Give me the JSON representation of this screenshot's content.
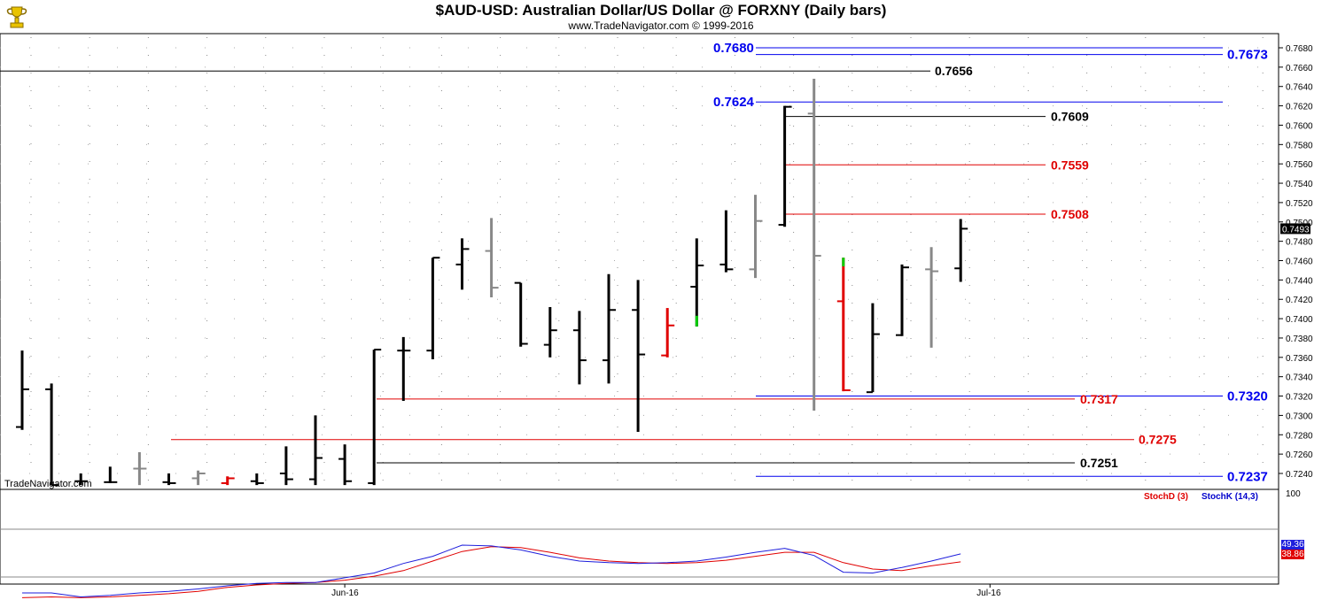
{
  "header": {
    "title": "$AUD-USD:  Australian Dollar/US Dollar @ FORXNY  (Daily bars)",
    "subtitle": "www.TradeNavigator.com © 1999-2016",
    "watermark": "TradeNavigator.com",
    "logo_icon": "trophy-logo-icon"
  },
  "chart_data": {
    "type": "ohlc",
    "ylim": [
      0.723,
      0.769
    ],
    "yticks": [
      "0.7240",
      "0.7260",
      "0.7280",
      "0.7300",
      "0.7320",
      "0.7340",
      "0.7360",
      "0.7380",
      "0.7400",
      "0.7420",
      "0.7440",
      "0.7460",
      "0.7480",
      "0.7500",
      "0.7520",
      "0.7540",
      "0.7560",
      "0.7580",
      "0.7600",
      "0.7620",
      "0.7640",
      "0.7660",
      "0.7680"
    ],
    "last_price": "0.7493",
    "xticks": [
      {
        "bar": 11,
        "label": "Jun-16"
      },
      {
        "bar": 33,
        "label": "Jul-16"
      }
    ],
    "colors": {
      "black": "#000000",
      "gray": "#888888",
      "red": "#e00000",
      "green": "#00cc00"
    },
    "bars": [
      {
        "o": 0.7288,
        "h": 0.7367,
        "l": 0.7285,
        "c": 0.7327,
        "color": "black"
      },
      {
        "o": 0.7327,
        "h": 0.7333,
        "l": 0.7228,
        "c": 0.7228,
        "color": "black"
      },
      {
        "o": 0.7232,
        "h": 0.724,
        "l": 0.7228,
        "c": 0.7232,
        "color": "black"
      },
      {
        "o": 0.7231,
        "h": 0.7247,
        "l": 0.723,
        "c": 0.7231,
        "color": "black"
      },
      {
        "o": 0.7245,
        "h": 0.7262,
        "l": 0.7228,
        "c": 0.7245,
        "color": "gray"
      },
      {
        "o": 0.7231,
        "h": 0.724,
        "l": 0.7228,
        "c": 0.723,
        "color": "black"
      },
      {
        "o": 0.7235,
        "h": 0.7243,
        "l": 0.7228,
        "c": 0.724,
        "color": "gray"
      },
      {
        "o": 0.723,
        "h": 0.7237,
        "l": 0.7228,
        "c": 0.7235,
        "color": "red"
      },
      {
        "o": 0.7232,
        "h": 0.724,
        "l": 0.7228,
        "c": 0.723,
        "color": "black"
      },
      {
        "o": 0.724,
        "h": 0.7268,
        "l": 0.7228,
        "c": 0.7234,
        "color": "black"
      },
      {
        "o": 0.7234,
        "h": 0.73,
        "l": 0.7228,
        "c": 0.7256,
        "color": "black"
      },
      {
        "o": 0.7255,
        "h": 0.727,
        "l": 0.7228,
        "c": 0.7232,
        "color": "black"
      },
      {
        "o": 0.723,
        "h": 0.7368,
        "l": 0.7228,
        "c": 0.7368,
        "color": "black"
      },
      {
        "o": 0.7367,
        "h": 0.7381,
        "l": 0.7315,
        "c": 0.7367,
        "color": "black"
      },
      {
        "o": 0.7367,
        "h": 0.7463,
        "l": 0.7358,
        "c": 0.7463,
        "color": "black"
      },
      {
        "o": 0.7456,
        "h": 0.7483,
        "l": 0.743,
        "c": 0.7472,
        "color": "black"
      },
      {
        "o": 0.747,
        "h": 0.7504,
        "l": 0.7422,
        "c": 0.7432,
        "color": "gray"
      },
      {
        "o": 0.7437,
        "h": 0.7437,
        "l": 0.7371,
        "c": 0.7374,
        "color": "black"
      },
      {
        "o": 0.7373,
        "h": 0.7412,
        "l": 0.736,
        "c": 0.7388,
        "color": "black"
      },
      {
        "o": 0.7388,
        "h": 0.7408,
        "l": 0.7332,
        "c": 0.7357,
        "color": "black"
      },
      {
        "o": 0.7357,
        "h": 0.7446,
        "l": 0.7333,
        "c": 0.7409,
        "color": "black"
      },
      {
        "o": 0.7409,
        "h": 0.744,
        "l": 0.7283,
        "c": 0.7363,
        "color": "black"
      },
      {
        "o": 0.7362,
        "h": 0.7411,
        "l": 0.736,
        "c": 0.7393,
        "color": "red"
      },
      {
        "o": 0.7433,
        "h": 0.7483,
        "l": 0.7392,
        "c": 0.7455,
        "color": "black",
        "low_tail": "green"
      },
      {
        "o": 0.7456,
        "h": 0.7512,
        "l": 0.7448,
        "c": 0.7451,
        "color": "black"
      },
      {
        "o": 0.7451,
        "h": 0.7528,
        "l": 0.7442,
        "c": 0.7501,
        "color": "gray"
      },
      {
        "o": 0.7497,
        "h": 0.762,
        "l": 0.7495,
        "c": 0.7619,
        "color": "black"
      },
      {
        "o": 0.7612,
        "h": 0.7648,
        "l": 0.7305,
        "c": 0.7465,
        "color": "gray"
      },
      {
        "o": 0.7418,
        "h": 0.7463,
        "l": 0.7325,
        "c": 0.7326,
        "color": "red",
        "high_tail": "green"
      },
      {
        "o": 0.7324,
        "h": 0.7416,
        "l": 0.7324,
        "c": 0.7384,
        "color": "black"
      },
      {
        "o": 0.7383,
        "h": 0.7456,
        "l": 0.7382,
        "c": 0.7453,
        "color": "black"
      },
      {
        "o": 0.7451,
        "h": 0.7474,
        "l": 0.737,
        "c": 0.7449,
        "color": "gray"
      },
      {
        "o": 0.7452,
        "h": 0.7503,
        "l": 0.7438,
        "c": 0.7493,
        "color": "black"
      }
    ],
    "levels": [
      {
        "label": "0.7680",
        "value": 0.768,
        "color": "#0000ee",
        "side": "left"
      },
      {
        "label": "0.7673",
        "value": 0.7673,
        "color": "#0000ee",
        "side": "right"
      },
      {
        "label": "0.7656",
        "value": 0.7656,
        "color": "#000000",
        "side": "mid"
      },
      {
        "label": "0.7624",
        "value": 0.7624,
        "color": "#0000ee",
        "side": "left"
      },
      {
        "label": "0.7609",
        "value": 0.7609,
        "color": "#000000",
        "side": "mid"
      },
      {
        "label": "0.7559",
        "value": 0.7559,
        "color": "#e00000",
        "side": "mid"
      },
      {
        "label": "0.7508",
        "value": 0.7508,
        "color": "#e00000",
        "side": "mid"
      },
      {
        "label": "0.7320",
        "value": 0.732,
        "color": "#0000ee",
        "side": "right"
      },
      {
        "label": "0.7317",
        "value": 0.7317,
        "color": "#e00000",
        "side": "mid"
      },
      {
        "label": "0.7275",
        "value": 0.7275,
        "color": "#e00000",
        "side": "mid"
      },
      {
        "label": "0.7251",
        "value": 0.7251,
        "color": "#000000",
        "side": "mid"
      },
      {
        "label": "0.7237",
        "value": 0.7237,
        "color": "#0000ee",
        "side": "right"
      }
    ],
    "stochastic": {
      "labels": {
        "d": "StochD (3)",
        "k": "StochK (14,3)"
      },
      "top_label": "100",
      "k_last": "49.36",
      "d_last": "38.86",
      "k": [
        0,
        0,
        -5,
        -3,
        0,
        2,
        5,
        9,
        12,
        13,
        13,
        19,
        25,
        37,
        46,
        60,
        59,
        54,
        46,
        40,
        38,
        37,
        38,
        40,
        45,
        51,
        56,
        47,
        26,
        25,
        32,
        40,
        49
      ],
      "d": [
        -6,
        -5,
        -6,
        -5,
        -3,
        -1,
        2,
        7,
        10,
        12,
        13,
        16,
        21,
        28,
        40,
        52,
        58,
        57,
        51,
        44,
        40,
        38,
        37,
        38,
        41,
        46,
        51,
        51,
        38,
        30,
        28,
        34,
        39
      ]
    }
  }
}
